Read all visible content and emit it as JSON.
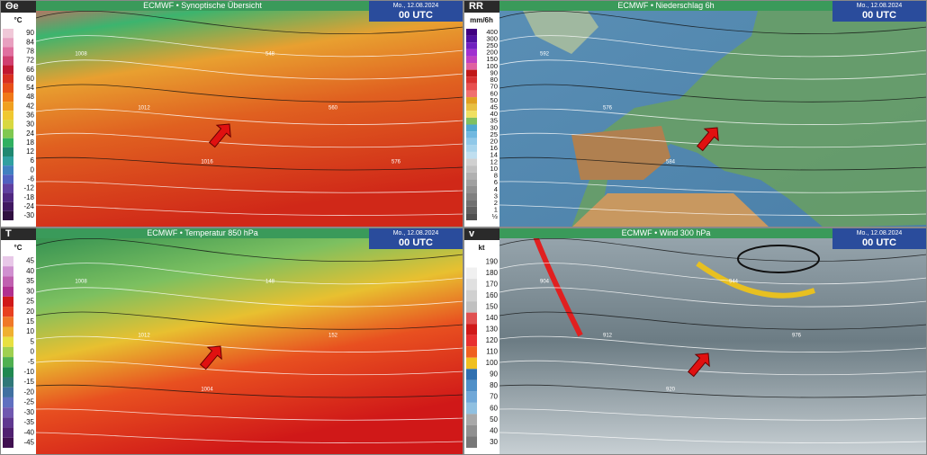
{
  "panels": [
    {
      "symbol": "Θe",
      "unit": "°C",
      "title": "ECMWF • Synoptische Übersicht",
      "date": "Mo., 12.08.2024",
      "time": "00 UTC",
      "legend": [
        "90",
        "84",
        "78",
        "72",
        "66",
        "60",
        "54",
        "48",
        "42",
        "36",
        "30",
        "24",
        "18",
        "12",
        "6",
        "0",
        "-6",
        "-12",
        "-18",
        "-24",
        "-30"
      ],
      "labels": [
        "1008",
        "1012",
        "1016",
        "548",
        "560",
        "576"
      ]
    },
    {
      "symbol": "RR",
      "unit": "mm/6h",
      "title": "ECMWF • Niederschlag 6h",
      "date": "Mo., 12.08.2024",
      "time": "00 UTC",
      "legend": [
        "400",
        "300",
        "250",
        "200",
        "150",
        "100",
        "90",
        "80",
        "70",
        "60",
        "50",
        "45",
        "40",
        "35",
        "30",
        "25",
        "20",
        "16",
        "14",
        "12",
        "10",
        "8",
        "6",
        "4",
        "3",
        "2",
        "1",
        "½"
      ],
      "labels": [
        "592",
        "576",
        "584"
      ]
    },
    {
      "symbol": "T",
      "unit": "°C",
      "title": "ECMWF • Temperatur 850 hPa",
      "date": "Mo., 12.08.2024",
      "time": "00 UTC",
      "legend": [
        "45",
        "40",
        "35",
        "30",
        "25",
        "20",
        "15",
        "10",
        "5",
        "0",
        "-5",
        "-10",
        "-15",
        "-20",
        "-25",
        "-30",
        "-35",
        "-40",
        "-45"
      ],
      "labels": [
        "1008",
        "1012",
        "1004",
        "148",
        "152"
      ]
    },
    {
      "symbol": "v",
      "unit": "kt",
      "title": "ECMWF • Wind 300 hPa",
      "date": "Mo., 12.08.2024",
      "time": "00 UTC",
      "legend": [
        "190",
        "180",
        "170",
        "160",
        "150",
        "140",
        "130",
        "120",
        "110",
        "100",
        "90",
        "80",
        "70",
        "60",
        "50",
        "40",
        "30"
      ],
      "labels": [
        "904",
        "912",
        "920",
        "944",
        "976"
      ]
    }
  ]
}
